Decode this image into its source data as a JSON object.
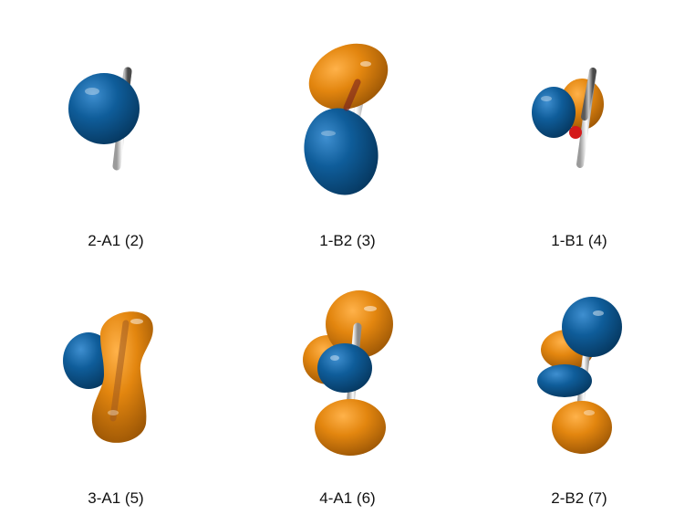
{
  "orbitals": [
    {
      "label": "2-A1 (2)"
    },
    {
      "label": "1-B2 (3)"
    },
    {
      "label": "1-B1 (4)"
    },
    {
      "label": "3-A1 (5)"
    },
    {
      "label": "4-A1 (6)"
    },
    {
      "label": "2-B2 (7)"
    }
  ],
  "colors": {
    "positive_lobe": "#e8891a",
    "negative_lobe": "#0d5a96",
    "oxygen": "#cc1a1a",
    "hydrogen": "#f2f2f2",
    "carbon": "#8a8a8a"
  }
}
